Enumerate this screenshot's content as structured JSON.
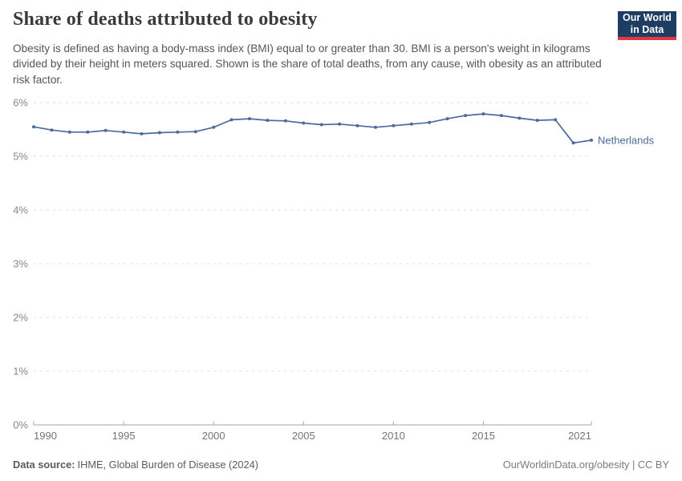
{
  "header": {
    "title": "Share of deaths attributed to obesity",
    "subtitle": "Obesity is defined as having a body-mass index (BMI) equal to or greater than 30. BMI is a person's weight in kilograms divided by their height in meters squared. Shown is the share of total deaths, from any cause, with obesity as an attributed risk factor."
  },
  "logo": {
    "line1": "Our World",
    "line2": "in Data",
    "bg_color": "#1d3d63",
    "accent_color": "#e0383f"
  },
  "chart_data": {
    "type": "line",
    "title": "Share of deaths attributed to obesity",
    "x": [
      1990,
      1991,
      1992,
      1993,
      1994,
      1995,
      1996,
      1997,
      1998,
      1999,
      2000,
      2001,
      2002,
      2003,
      2004,
      2005,
      2006,
      2007,
      2008,
      2009,
      2010,
      2011,
      2012,
      2013,
      2014,
      2015,
      2016,
      2017,
      2018,
      2019,
      2020,
      2021
    ],
    "series": [
      {
        "name": "Netherlands",
        "color": "#4c6a9c",
        "values": [
          5.55,
          5.49,
          5.45,
          5.45,
          5.48,
          5.45,
          5.42,
          5.44,
          5.45,
          5.46,
          5.54,
          5.68,
          5.7,
          5.67,
          5.66,
          5.62,
          5.59,
          5.6,
          5.57,
          5.54,
          5.57,
          5.6,
          5.63,
          5.7,
          5.76,
          5.79,
          5.76,
          5.71,
          5.67,
          5.68,
          5.25,
          5.3
        ]
      }
    ],
    "xlabel": "",
    "ylabel": "",
    "ylim": [
      0,
      6
    ],
    "yticks": [
      0,
      1,
      2,
      3,
      4,
      5,
      6
    ],
    "y_format_suffix": "%",
    "xticks": [
      1990,
      1995,
      2000,
      2005,
      2010,
      2015,
      2021
    ],
    "grid": "horizontal-dashed",
    "legend_position": "end-of-line",
    "grid_color": "#dcdcdc",
    "axis_color": "#a5a5a5"
  },
  "footer": {
    "source_label": "Data source:",
    "source": "IHME, Global Burden of Disease (2024)",
    "credit": "OurWorldinData.org/obesity | CC BY"
  }
}
